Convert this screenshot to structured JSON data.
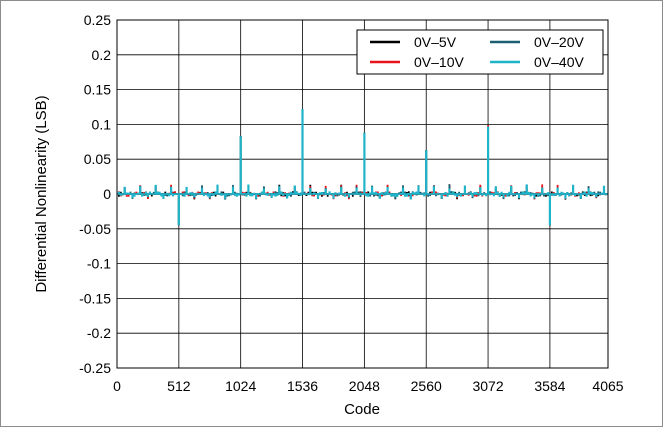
{
  "chart_data": {
    "type": "line",
    "xlabel": "Code",
    "ylabel": "Differential Nonlinearity (LSB)",
    "xlim": [
      0,
      4065
    ],
    "ylim": [
      -0.25,
      0.25
    ],
    "x_ticks": [
      0,
      512,
      1024,
      1536,
      2048,
      2560,
      3072,
      3584,
      4065
    ],
    "y_ticks": [
      0.25,
      0.2,
      0.15,
      0.1,
      0.05,
      0,
      -0.05,
      -0.1,
      -0.15,
      -0.2,
      -0.25
    ],
    "y_tick_labels": [
      "0.25",
      "0.2",
      "0.15",
      "0.1",
      "0.05",
      "0",
      "-0.05",
      "-0.1",
      "-0.15",
      "-0.2",
      "-0.25"
    ],
    "grid": true,
    "legend_position": "top-right",
    "series": [
      {
        "name": "0V–5V",
        "color": "#000000"
      },
      {
        "name": "0V–10V",
        "color": "#e8141c"
      },
      {
        "name": "0V–20V",
        "color": "#1b5f72"
      },
      {
        "name": "0V–40V",
        "color": "#1fb4c9"
      }
    ],
    "spikes": [
      {
        "x": 512,
        "y": -0.045
      },
      {
        "x": 1024,
        "y": 0.083
      },
      {
        "x": 1536,
        "y": 0.122
      },
      {
        "x": 2048,
        "y": 0.088
      },
      {
        "x": 2560,
        "y": 0.063
      },
      {
        "x": 3072,
        "y": 0.097
      },
      {
        "x": 3584,
        "y": -0.045
      }
    ],
    "noise_band": [
      -0.008,
      0.014
    ]
  }
}
